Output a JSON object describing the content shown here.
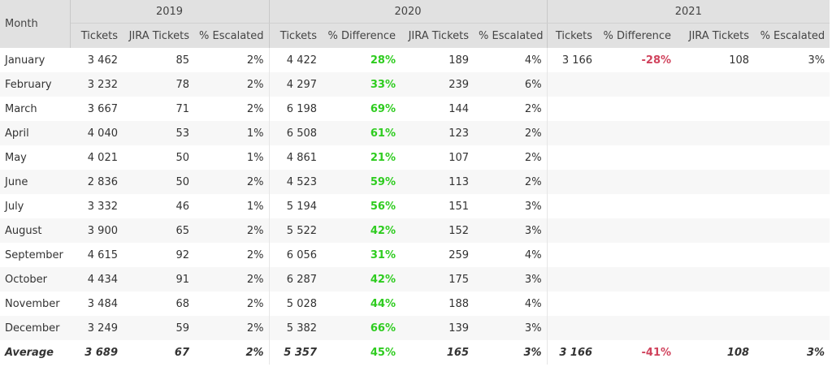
{
  "header": {
    "month_label": "Month",
    "years": [
      "2019",
      "2020",
      "2021"
    ],
    "cols_2019": [
      "Tickets",
      "JIRA Tickets",
      "% Escalated"
    ],
    "cols_2020": [
      "Tickets",
      "% Difference",
      "JIRA Tickets",
      "% Escalated"
    ],
    "cols_2021": [
      "Tickets",
      "% Difference",
      "JIRA Tickets",
      "% Escalated"
    ]
  },
  "colors": {
    "positive": "#2ecc1f",
    "negative": "#d0425c",
    "header_bg": "#e1e1e1"
  },
  "rows": [
    {
      "month": "January",
      "t19": "3 462",
      "j19": "85",
      "e19": "2%",
      "t20": "4 422",
      "d20": "28%",
      "j20": "189",
      "e20": "4%",
      "t21": "3 166",
      "d21": "-28%",
      "j21": "108",
      "e21": "3%"
    },
    {
      "month": "February",
      "t19": "3 232",
      "j19": "78",
      "e19": "2%",
      "t20": "4 297",
      "d20": "33%",
      "j20": "239",
      "e20": "6%",
      "t21": "",
      "d21": "",
      "j21": "",
      "e21": ""
    },
    {
      "month": "March",
      "t19": "3 667",
      "j19": "71",
      "e19": "2%",
      "t20": "6 198",
      "d20": "69%",
      "j20": "144",
      "e20": "2%",
      "t21": "",
      "d21": "",
      "j21": "",
      "e21": ""
    },
    {
      "month": "April",
      "t19": "4 040",
      "j19": "53",
      "e19": "1%",
      "t20": "6 508",
      "d20": "61%",
      "j20": "123",
      "e20": "2%",
      "t21": "",
      "d21": "",
      "j21": "",
      "e21": ""
    },
    {
      "month": "May",
      "t19": "4 021",
      "j19": "50",
      "e19": "1%",
      "t20": "4 861",
      "d20": "21%",
      "j20": "107",
      "e20": "2%",
      "t21": "",
      "d21": "",
      "j21": "",
      "e21": ""
    },
    {
      "month": "June",
      "t19": "2 836",
      "j19": "50",
      "e19": "2%",
      "t20": "4 523",
      "d20": "59%",
      "j20": "113",
      "e20": "2%",
      "t21": "",
      "d21": "",
      "j21": "",
      "e21": ""
    },
    {
      "month": "July",
      "t19": "3 332",
      "j19": "46",
      "e19": "1%",
      "t20": "5 194",
      "d20": "56%",
      "j20": "151",
      "e20": "3%",
      "t21": "",
      "d21": "",
      "j21": "",
      "e21": ""
    },
    {
      "month": "August",
      "t19": "3 900",
      "j19": "65",
      "e19": "2%",
      "t20": "5 522",
      "d20": "42%",
      "j20": "152",
      "e20": "3%",
      "t21": "",
      "d21": "",
      "j21": "",
      "e21": ""
    },
    {
      "month": "September",
      "t19": "4 615",
      "j19": "92",
      "e19": "2%",
      "t20": "6 056",
      "d20": "31%",
      "j20": "259",
      "e20": "4%",
      "t21": "",
      "d21": "",
      "j21": "",
      "e21": ""
    },
    {
      "month": "October",
      "t19": "4 434",
      "j19": "91",
      "e19": "2%",
      "t20": "6 287",
      "d20": "42%",
      "j20": "175",
      "e20": "3%",
      "t21": "",
      "d21": "",
      "j21": "",
      "e21": ""
    },
    {
      "month": "November",
      "t19": "3 484",
      "j19": "68",
      "e19": "2%",
      "t20": "5 028",
      "d20": "44%",
      "j20": "188",
      "e20": "4%",
      "t21": "",
      "d21": "",
      "j21": "",
      "e21": ""
    },
    {
      "month": "December",
      "t19": "3 249",
      "j19": "59",
      "e19": "2%",
      "t20": "5 382",
      "d20": "66%",
      "j20": "139",
      "e20": "3%",
      "t21": "",
      "d21": "",
      "j21": "",
      "e21": ""
    }
  ],
  "average": {
    "month": "Average",
    "t19": "3 689",
    "j19": "67",
    "e19": "2%",
    "t20": "5 357",
    "d20": "45%",
    "j20": "165",
    "e20": "3%",
    "t21": "3 166",
    "d21": "-41%",
    "j21": "108",
    "e21": "3%"
  }
}
